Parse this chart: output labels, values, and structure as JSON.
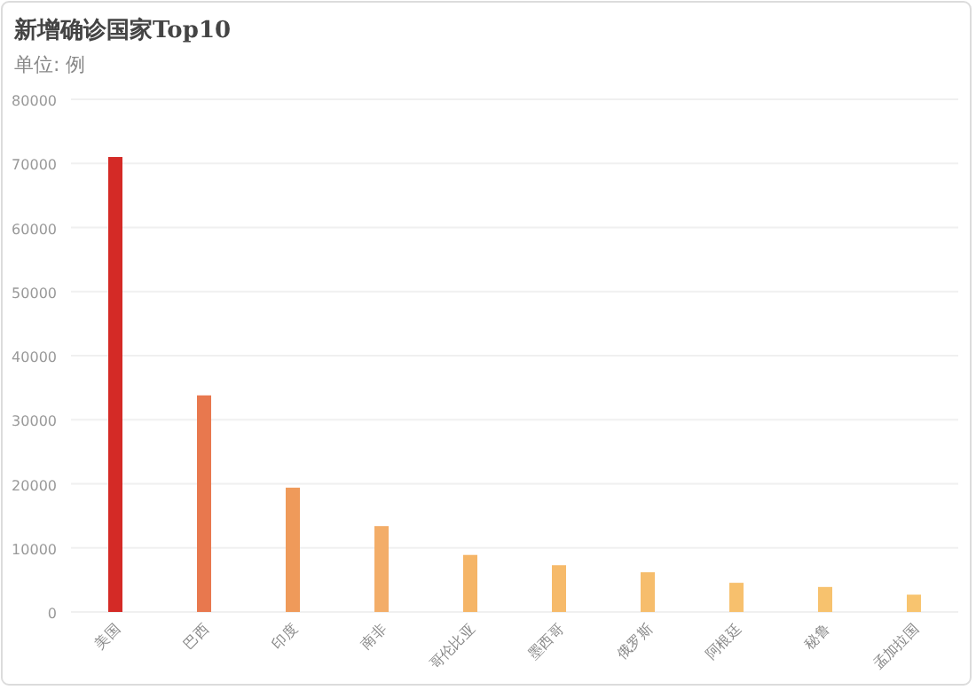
{
  "chart_data": {
    "type": "bar",
    "title": "新增确诊国家Top10",
    "subtitle": "单位: 例",
    "categories": [
      "美国",
      "巴西",
      "印度",
      "南非",
      "哥伦比亚",
      "墨西哥",
      "俄罗斯",
      "阿根廷",
      "秘鲁",
      "孟加拉国"
    ],
    "values": [
      71000,
      33800,
      19400,
      13400,
      8900,
      7300,
      6200,
      4550,
      3900,
      2700
    ],
    "colors": [
      "#d42a26",
      "#e8784e",
      "#ef9a5a",
      "#f3ad68",
      "#f5b567",
      "#f6ba6a",
      "#f6bd6c",
      "#f7c06d",
      "#f7c26e",
      "#f8c46f"
    ],
    "ylim": [
      0,
      80000
    ],
    "yticks": [
      0,
      10000,
      20000,
      30000,
      40000,
      50000,
      60000,
      70000,
      80000
    ],
    "grid": "y"
  }
}
